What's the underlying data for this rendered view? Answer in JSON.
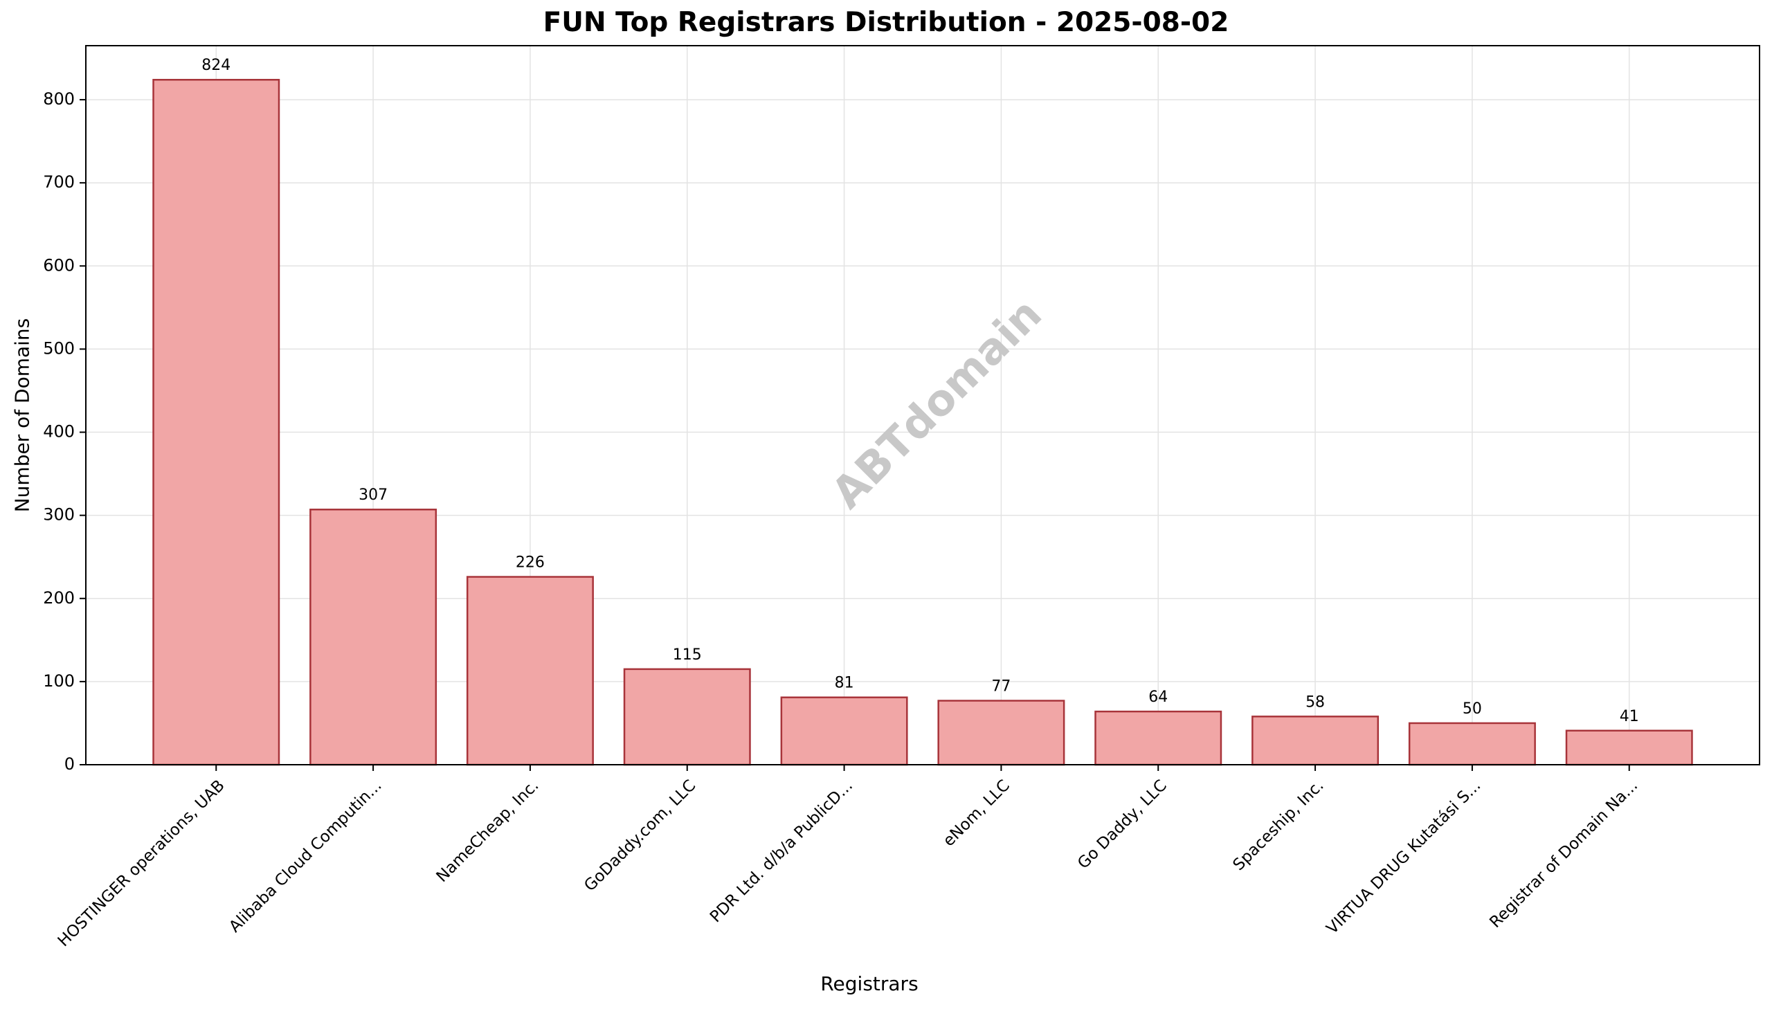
{
  "chart_data": {
    "type": "bar",
    "title": "FUN Top Registrars Distribution - 2025-08-02",
    "xlabel": "Registrars",
    "ylabel": "Number of Domains",
    "categories": [
      "HOSTINGER operations, UAB",
      "Alibaba Cloud Computin...",
      "NameCheap, Inc.",
      "GoDaddy.com, LLC",
      "PDR Ltd. d/b/a PublicD...",
      "eNom, LLC",
      "Go Daddy, LLC",
      "Spaceship, Inc.",
      "VIRTUA DRUG Kutatási S...",
      "Registrar of Domain Na..."
    ],
    "values": [
      824,
      307,
      226,
      115,
      81,
      77,
      64,
      58,
      50,
      41
    ],
    "data_labels": [
      "824",
      "307",
      "226",
      "115",
      "81",
      "77",
      "64",
      "58",
      "50",
      "41"
    ],
    "yticks": [
      0,
      100,
      200,
      300,
      400,
      500,
      600,
      700,
      800
    ],
    "ylim": [
      0,
      865
    ],
    "grid": true,
    "bar_color": "#f1a6a6",
    "bar_edge_color": "#a8343a",
    "watermark": "ABTdomain"
  }
}
